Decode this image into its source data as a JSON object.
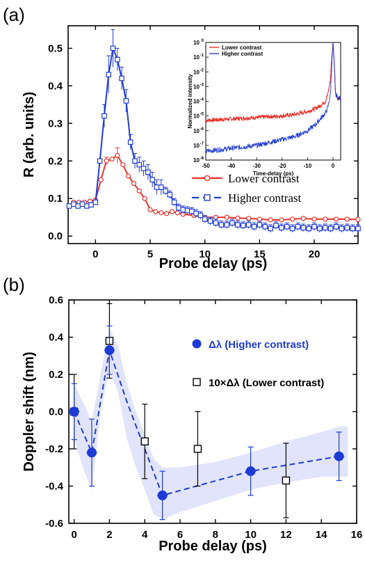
{
  "panel_a_label": "(a)",
  "panel_b_label": "(b)",
  "chart_data": [
    {
      "panel": "(a)",
      "type": "line",
      "xlabel": "Probe delay (ps)",
      "ylabel": "R (arb. units)",
      "xlim": [
        -2.5,
        24
      ],
      "ylim": [
        -0.02,
        0.56
      ],
      "xticks": [
        0,
        5,
        10,
        15,
        20
      ],
      "yticks": [
        0.0,
        0.1,
        0.2,
        0.3,
        0.4,
        0.5
      ],
      "ytick_labels": [
        "0.0",
        "0.1",
        "0.2",
        "0.3",
        "0.4",
        "0.5"
      ],
      "legend_position": "right, below inset",
      "series": [
        {
          "name": "Lower contrast",
          "color": "#e8312a",
          "marker": "circle",
          "x": [
            -2,
            -1.5,
            -1,
            -0.5,
            0,
            0.5,
            1,
            1.5,
            2,
            2.5,
            3,
            3.5,
            4,
            4.5,
            5,
            5.5,
            6,
            6.5,
            7,
            7.5,
            8,
            9,
            10,
            11,
            12,
            13,
            14,
            15,
            16,
            17,
            18,
            19,
            20,
            21,
            22,
            23,
            24
          ],
          "y": [
            0.09,
            0.09,
            0.09,
            0.093,
            0.096,
            0.15,
            0.2,
            0.205,
            0.215,
            0.19,
            0.16,
            0.14,
            0.12,
            0.1,
            0.07,
            0.065,
            0.062,
            0.06,
            0.065,
            0.062,
            0.058,
            0.055,
            0.05,
            0.05,
            0.05,
            0.048,
            0.047,
            0.045,
            0.043,
            0.043,
            0.045,
            0.047,
            0.045,
            0.045,
            0.045,
            0.045,
            0.044
          ],
          "err": [
            0,
            0,
            0,
            0,
            0,
            0,
            0.01,
            0,
            0.02,
            0,
            0,
            0,
            0,
            0,
            0,
            0,
            0,
            0,
            0,
            0,
            0,
            0,
            0,
            0,
            0,
            0,
            0,
            0,
            0,
            0,
            0,
            0,
            0,
            0,
            0,
            0,
            0
          ]
        },
        {
          "name": "Higher contrast",
          "color": "#1f3bd6",
          "marker": "square",
          "x": [
            -2.4,
            -2,
            -1.6,
            -1.2,
            -0.8,
            -0.4,
            0,
            0.4,
            0.8,
            1.2,
            1.6,
            2,
            2.4,
            2.8,
            3.2,
            3.6,
            4,
            4.4,
            4.8,
            5.2,
            5.6,
            6,
            6.4,
            6.8,
            7.2,
            7.6,
            8,
            8.4,
            8.8,
            9.2,
            9.6,
            10,
            10.5,
            11,
            11.5,
            12,
            12.5,
            13,
            13.5,
            14,
            14.5,
            15,
            15.5,
            16,
            16.5,
            17,
            17.5,
            18,
            18.5,
            19,
            19.5,
            20,
            20.5,
            21,
            21.5,
            22,
            22.5,
            23,
            23.5,
            24
          ],
          "y": [
            0.08,
            0.085,
            0.08,
            0.085,
            0.08,
            0.083,
            0.09,
            0.2,
            0.32,
            0.43,
            0.5,
            0.47,
            0.42,
            0.36,
            0.25,
            0.2,
            0.19,
            0.18,
            0.17,
            0.15,
            0.13,
            0.13,
            0.12,
            0.11,
            0.09,
            0.075,
            0.07,
            0.068,
            0.066,
            0.06,
            0.055,
            0.045,
            0.04,
            0.035,
            0.03,
            0.03,
            0.035,
            0.03,
            0.028,
            0.03,
            0.025,
            0.03,
            0.025,
            0.02,
            0.028,
            0.022,
            0.025,
            0.02,
            0.025,
            0.022,
            0.02,
            0.025,
            0.02,
            0.022,
            0.02,
            0.025,
            0.02,
            0.022,
            0.02,
            0.02
          ],
          "err": [
            0,
            0,
            0,
            0,
            0,
            0,
            0,
            0,
            0.03,
            0.05,
            0.05,
            0.03,
            0.03,
            0.03,
            0.02,
            0.02,
            0.02,
            0.02,
            0.02,
            0.02,
            0.02,
            0.02,
            0.01,
            0.01,
            0.01,
            0.01,
            0.01,
            0.01,
            0.01,
            0.01,
            0.01,
            0.01,
            0.01,
            0.01,
            0.01,
            0.01,
            0.01,
            0.01,
            0.01,
            0.01,
            0.01,
            0.01,
            0.01,
            0.01,
            0.01,
            0.01,
            0.01,
            0.01,
            0.01,
            0.01,
            0.01,
            0.01,
            0.01,
            0.01,
            0.01,
            0.01,
            0.01,
            0.01,
            0.01,
            0.01
          ]
        }
      ],
      "inset": {
        "type": "line",
        "xlabel": "Time-delay (ps)",
        "ylabel": "Normalized intensity",
        "scale_y": "log",
        "xlim": [
          -50,
          3
        ],
        "ylim_exponents": [
          -8,
          0
        ],
        "xticks": [
          -50,
          -40,
          -30,
          -20,
          -10,
          0
        ],
        "ytick_mantissa": "10",
        "ytick_exponents": [
          "0",
          "-1",
          "-2",
          "-3",
          "-4",
          "-5",
          "-6",
          "-7",
          "-8"
        ],
        "legend_position": "top-left",
        "series": [
          {
            "name": "Lower contrast",
            "color": "#e8312a",
            "x": [
              -50,
              -45,
              -40,
              -35,
              -30,
              -25,
              -20,
              -15,
              -10,
              -7,
              -5,
              -3,
              -2,
              -1,
              -0.5,
              0,
              0.5,
              1,
              2,
              3
            ],
            "y_exp": [
              -5.3,
              -5.25,
              -5.2,
              -5.15,
              -5.1,
              -5.05,
              -5.0,
              -4.9,
              -4.7,
              -4.5,
              -4.3,
              -4.0,
              -3.5,
              -2.5,
              -1.0,
              0,
              -1.5,
              -3.5,
              -3.8,
              -3.8
            ]
          },
          {
            "name": "Higher contrast",
            "color": "#1f3bd6",
            "x": [
              -50,
              -45,
              -40,
              -35,
              -30,
              -25,
              -20,
              -15,
              -10,
              -7,
              -5,
              -3,
              -2,
              -1,
              -0.5,
              0,
              0.5,
              1,
              2,
              3
            ],
            "y_exp": [
              -7.4,
              -7.3,
              -7.2,
              -7.1,
              -7.0,
              -6.8,
              -6.6,
              -6.4,
              -6.0,
              -5.6,
              -5.2,
              -4.8,
              -4.4,
              -3.5,
              -1.5,
              0,
              -1.5,
              -3.5,
              -3.8,
              -3.8
            ]
          }
        ]
      }
    },
    {
      "panel": "(b)",
      "type": "scatter",
      "xlabel": "Probe delay (ps)",
      "ylabel": "Doppler shift (nm)",
      "xlim": [
        -0.3,
        16
      ],
      "ylim": [
        -0.6,
        0.6
      ],
      "xticks": [
        0,
        2,
        4,
        6,
        8,
        10,
        12,
        14,
        16
      ],
      "yticks": [
        -0.6,
        -0.4,
        -0.2,
        0.0,
        0.2,
        0.4,
        0.6
      ],
      "ytick_labels": [
        "-0.6",
        "-0.4",
        "-0.2",
        "0.0",
        "0.2",
        "0.4",
        "0.6"
      ],
      "legend_position": "right",
      "series": [
        {
          "name": "Δλ (Higher contrast)",
          "color": "#1f3bd6",
          "marker": "filled-circle",
          "x": [
            0,
            1,
            2,
            5,
            10,
            15
          ],
          "y": [
            0.0,
            -0.22,
            0.33,
            -0.45,
            -0.32,
            -0.24
          ],
          "yerr": [
            0.15,
            0.18,
            0.13,
            0.13,
            0.13,
            0.13
          ],
          "xerr": [
            0.3,
            0.3,
            0.3,
            0.3,
            0.3,
            0.3
          ]
        },
        {
          "name": "10×Δλ (Lower contrast)",
          "color": "#000000",
          "marker": "open-square",
          "x": [
            0,
            2,
            4,
            7,
            12
          ],
          "y": [
            0.0,
            0.38,
            -0.16,
            -0.2,
            -0.37
          ],
          "yerr": [
            0.2,
            0.2,
            0.2,
            0.2,
            0.2
          ]
        }
      ],
      "band": {
        "color": "#c8cdf5",
        "x": [
          0,
          0.5,
          1,
          1.5,
          2,
          2.5,
          3,
          3.5,
          4,
          4.5,
          5,
          6,
          8,
          10,
          12,
          14,
          15,
          15.5
        ],
        "upper": [
          0.15,
          0.05,
          -0.05,
          0.2,
          0.45,
          0.35,
          0.15,
          0.0,
          -0.12,
          -0.25,
          -0.3,
          -0.3,
          -0.27,
          -0.22,
          -0.16,
          -0.11,
          -0.08,
          -0.08
        ],
        "lower": [
          -0.15,
          -0.3,
          -0.42,
          0.0,
          0.22,
          0.1,
          -0.15,
          -0.3,
          -0.42,
          -0.55,
          -0.58,
          -0.54,
          -0.48,
          -0.42,
          -0.38,
          -0.35,
          -0.35,
          -0.35
        ]
      },
      "fit_line": {
        "color": "#1f3bd6",
        "x": [
          0,
          1,
          2,
          3,
          4,
          5,
          10,
          15
        ],
        "y": [
          0.0,
          -0.22,
          0.33,
          0.05,
          -0.2,
          -0.45,
          -0.32,
          -0.24
        ]
      }
    }
  ]
}
